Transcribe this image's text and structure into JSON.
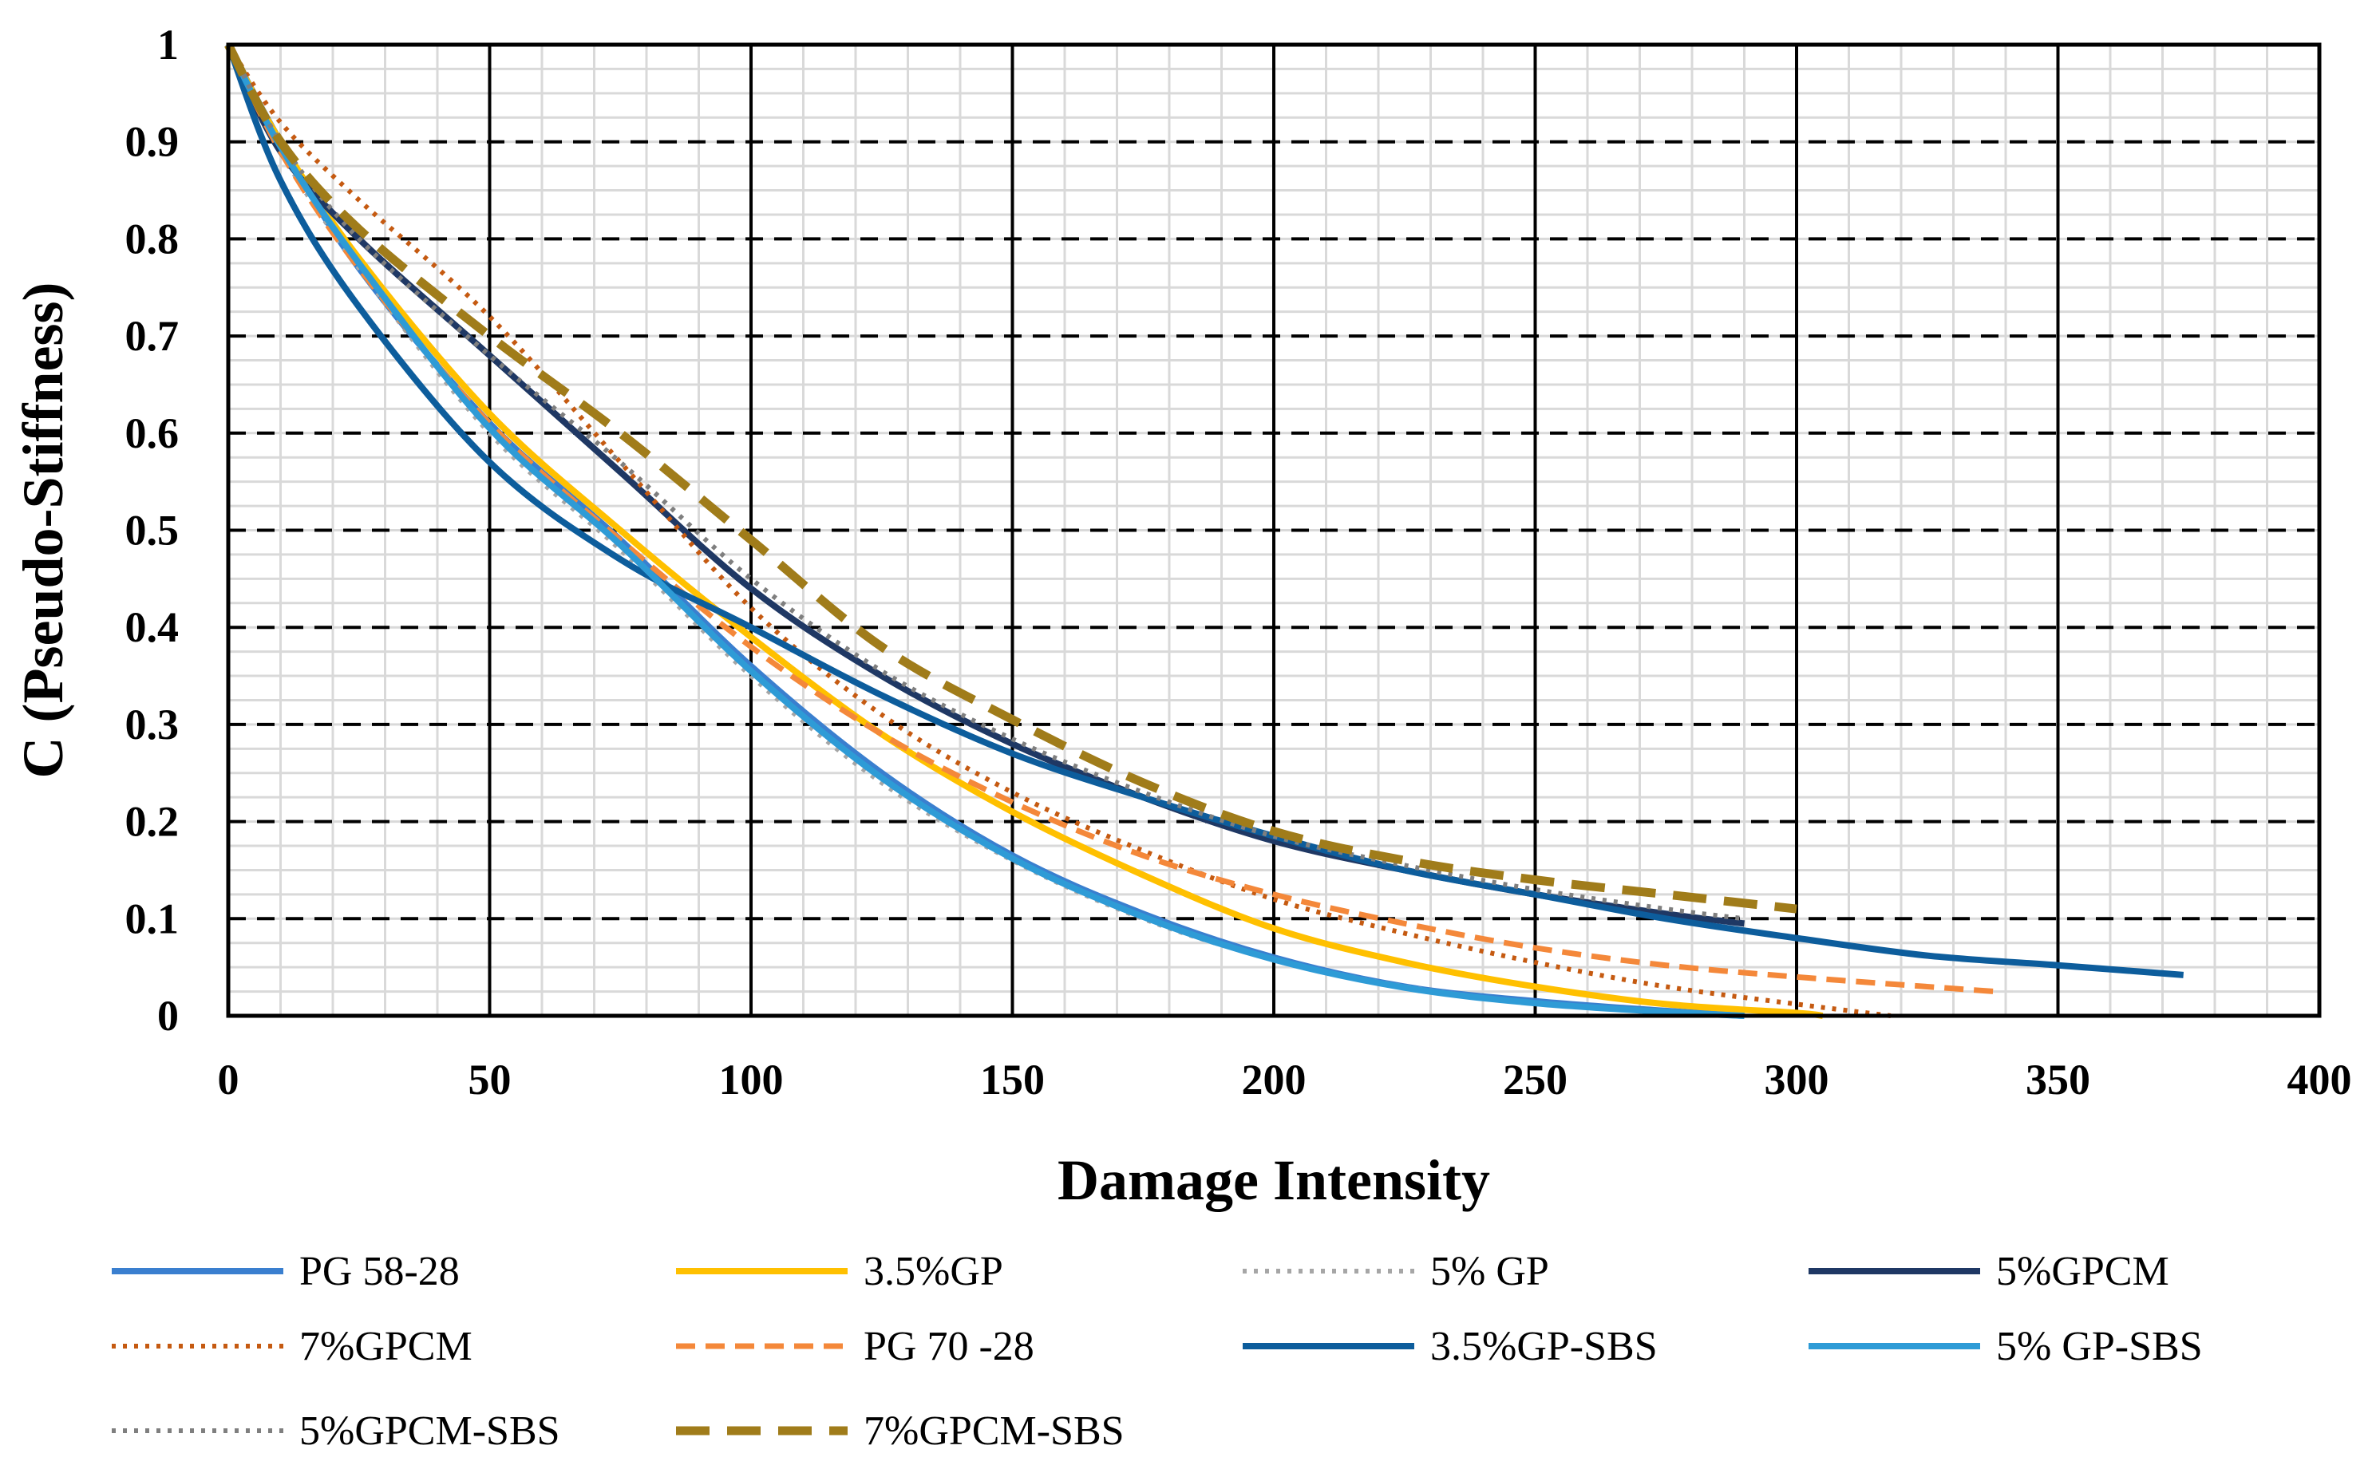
{
  "chart_data": {
    "type": "line",
    "title": "",
    "xlabel": "Damage Intensity",
    "ylabel": "C (Pseudo-Stiffness)",
    "xlim": [
      0,
      400
    ],
    "ylim": [
      0,
      1
    ],
    "x_ticks": [
      0,
      50,
      100,
      150,
      200,
      250,
      300,
      350,
      400
    ],
    "x_tick_labels": [
      "0",
      "50",
      "100",
      "150",
      "200",
      "250",
      "300",
      "350",
      "400"
    ],
    "y_ticks": [
      0,
      0.1,
      0.2,
      0.3,
      0.4,
      0.5,
      0.6,
      0.7,
      0.8,
      0.9,
      1
    ],
    "y_tick_labels": [
      "0",
      "0.1",
      "0.2",
      "0.3",
      "0.4",
      "0.5",
      "0.6",
      "0.7",
      "0.8",
      "0.9",
      "1"
    ],
    "grid": "major and minor",
    "legend_position": "bottom",
    "series": [
      {
        "name": "PG 58-28",
        "color": "#3a7fcf",
        "style": "solid",
        "x": [
          0,
          10,
          25,
          50,
          75,
          100,
          125,
          150,
          175,
          200,
          225,
          250,
          275,
          290
        ],
        "y": [
          1,
          0.9,
          0.77,
          0.61,
          0.49,
          0.36,
          0.25,
          0.165,
          0.105,
          0.06,
          0.03,
          0.015,
          0.005,
          0
        ]
      },
      {
        "name": "3.5%GP",
        "color": "#ffc000",
        "style": "solid",
        "x": [
          0,
          10,
          25,
          50,
          75,
          100,
          125,
          150,
          175,
          200,
          225,
          250,
          275,
          300,
          305
        ],
        "y": [
          1,
          0.9,
          0.78,
          0.62,
          0.5,
          0.39,
          0.29,
          0.21,
          0.145,
          0.09,
          0.055,
          0.03,
          0.012,
          0.003,
          0
        ]
      },
      {
        "name": "5% GP",
        "color": "#a6a6a6",
        "style": "dotted",
        "x": [
          0,
          10,
          25,
          50,
          75,
          100,
          125,
          150,
          175,
          200,
          225,
          250,
          275,
          290
        ],
        "y": [
          1,
          0.89,
          0.77,
          0.6,
          0.48,
          0.35,
          0.24,
          0.16,
          0.1,
          0.058,
          0.03,
          0.013,
          0.004,
          0
        ]
      },
      {
        "name": "5%GPCM",
        "color": "#1f3864",
        "style": "solid",
        "x": [
          0,
          10,
          25,
          50,
          75,
          100,
          125,
          150,
          175,
          200,
          225,
          250,
          275,
          290
        ],
        "y": [
          1,
          0.89,
          0.8,
          0.68,
          0.56,
          0.44,
          0.35,
          0.28,
          0.225,
          0.18,
          0.15,
          0.125,
          0.105,
          0.095
        ]
      },
      {
        "name": "7%GPCM",
        "color": "#c55a11",
        "style": "dotted",
        "x": [
          0,
          10,
          25,
          50,
          75,
          100,
          125,
          150,
          175,
          200,
          225,
          250,
          275,
          300,
          318
        ],
        "y": [
          1,
          0.92,
          0.84,
          0.72,
          0.57,
          0.42,
          0.31,
          0.23,
          0.17,
          0.12,
          0.085,
          0.055,
          0.03,
          0.012,
          0
        ]
      },
      {
        "name": "PG 70 -28",
        "color": "#f4883a",
        "style": "dashed",
        "x": [
          0,
          10,
          25,
          50,
          75,
          100,
          125,
          150,
          175,
          200,
          225,
          250,
          275,
          300,
          325,
          338
        ],
        "y": [
          1,
          0.89,
          0.77,
          0.61,
          0.49,
          0.38,
          0.29,
          0.22,
          0.165,
          0.125,
          0.095,
          0.07,
          0.052,
          0.04,
          0.03,
          0.025
        ]
      },
      {
        "name": "3.5%GP-SBS",
        "color": "#0d5d9c",
        "style": "solid",
        "x": [
          0,
          10,
          25,
          50,
          75,
          100,
          125,
          150,
          175,
          200,
          225,
          250,
          275,
          300,
          325,
          350,
          374
        ],
        "y": [
          1,
          0.86,
          0.73,
          0.57,
          0.47,
          0.4,
          0.33,
          0.27,
          0.225,
          0.185,
          0.15,
          0.125,
          0.1,
          0.08,
          0.062,
          0.052,
          0.042
        ]
      },
      {
        "name": "5% GP-SBS",
        "color": "#2e9bd6",
        "style": "solid",
        "x": [
          0,
          10,
          25,
          50,
          75,
          100,
          125,
          150,
          175,
          200,
          225,
          250,
          275,
          290
        ],
        "y": [
          1,
          0.895,
          0.775,
          0.605,
          0.485,
          0.355,
          0.245,
          0.162,
          0.102,
          0.058,
          0.029,
          0.013,
          0.004,
          0
        ]
      },
      {
        "name": "5%GPCM-SBS",
        "color": "#7f7f7f",
        "style": "dotted",
        "x": [
          0,
          10,
          25,
          50,
          75,
          100,
          125,
          150,
          175,
          200,
          225,
          250,
          275,
          290
        ],
        "y": [
          1,
          0.9,
          0.8,
          0.68,
          0.57,
          0.45,
          0.355,
          0.285,
          0.23,
          0.185,
          0.155,
          0.13,
          0.11,
          0.1
        ]
      },
      {
        "name": "7%GPCM-SBS",
        "color": "#a07c1a",
        "style": "longdash",
        "x": [
          0,
          10,
          25,
          50,
          75,
          100,
          125,
          150,
          175,
          200,
          225,
          250,
          275,
          300
        ],
        "y": [
          1,
          0.9,
          0.81,
          0.7,
          0.6,
          0.49,
          0.38,
          0.305,
          0.24,
          0.19,
          0.16,
          0.14,
          0.125,
          0.11
        ]
      }
    ]
  }
}
